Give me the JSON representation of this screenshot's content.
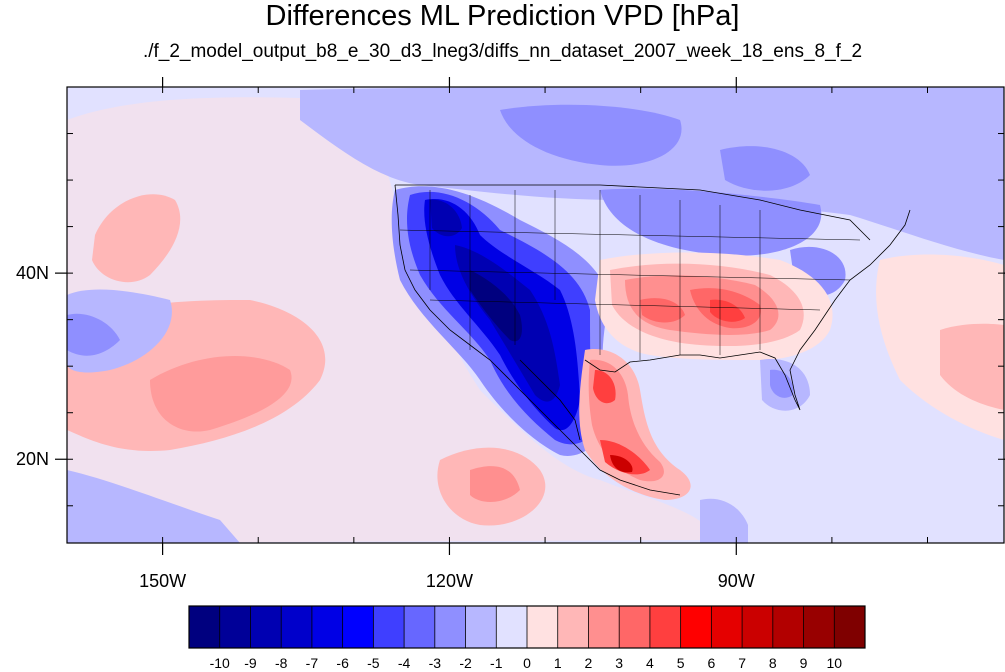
{
  "title": "Differences ML Prediction VPD [hPa]",
  "subtitle": "./f_2_model_output_b8_e_30_d3_lneg3/diffs_nn_dataset_2007_week_18_ens_8_f_2",
  "map": {
    "lon_range": [
      -160,
      -62
    ],
    "lat_range": [
      11,
      60
    ],
    "x_ticks": [
      {
        "lon": -150,
        "label": "150W"
      },
      {
        "lon": -120,
        "label": "120W"
      },
      {
        "lon": -90,
        "label": "90W"
      }
    ],
    "y_ticks": [
      {
        "lat": 40,
        "label": "40N"
      },
      {
        "lat": 20,
        "label": "20N"
      }
    ],
    "x_minor_step": 10,
    "y_minor_step": 5
  },
  "colorbar": {
    "labels": [
      "-10",
      "-9",
      "-8",
      "-7",
      "-6",
      "-5",
      "-4",
      "-3",
      "-2",
      "-1",
      "0",
      "1",
      "2",
      "3",
      "4",
      "5",
      "6",
      "7",
      "8",
      "9",
      "10"
    ],
    "colors": [
      "#00007f",
      "#000098",
      "#0000b2",
      "#0000cb",
      "#0000e5",
      "#0000ff",
      "#3f3fff",
      "#6767ff",
      "#8f8fff",
      "#b7b7ff",
      "#e1e1ff",
      "#ffe1e1",
      "#ffb7b7",
      "#ff8f8f",
      "#ff6767",
      "#ff3f3f",
      "#ff0000",
      "#e50000",
      "#cb0000",
      "#b20000",
      "#980000",
      "#7f0000"
    ]
  },
  "fields": {
    "background_color": "#e1e1ff",
    "regions": [
      {
        "name": "northeast-pacific-positive",
        "value": 2
      },
      {
        "name": "central-pacific-positive-band",
        "value": 2
      },
      {
        "name": "western-us-negative-core",
        "value": -9
      },
      {
        "name": "southern-us-positive",
        "value": 4
      },
      {
        "name": "mexico-positive",
        "value": 8
      },
      {
        "name": "canada-negative",
        "value": -3
      },
      {
        "name": "atlantic-positive",
        "value": 2
      }
    ]
  }
}
